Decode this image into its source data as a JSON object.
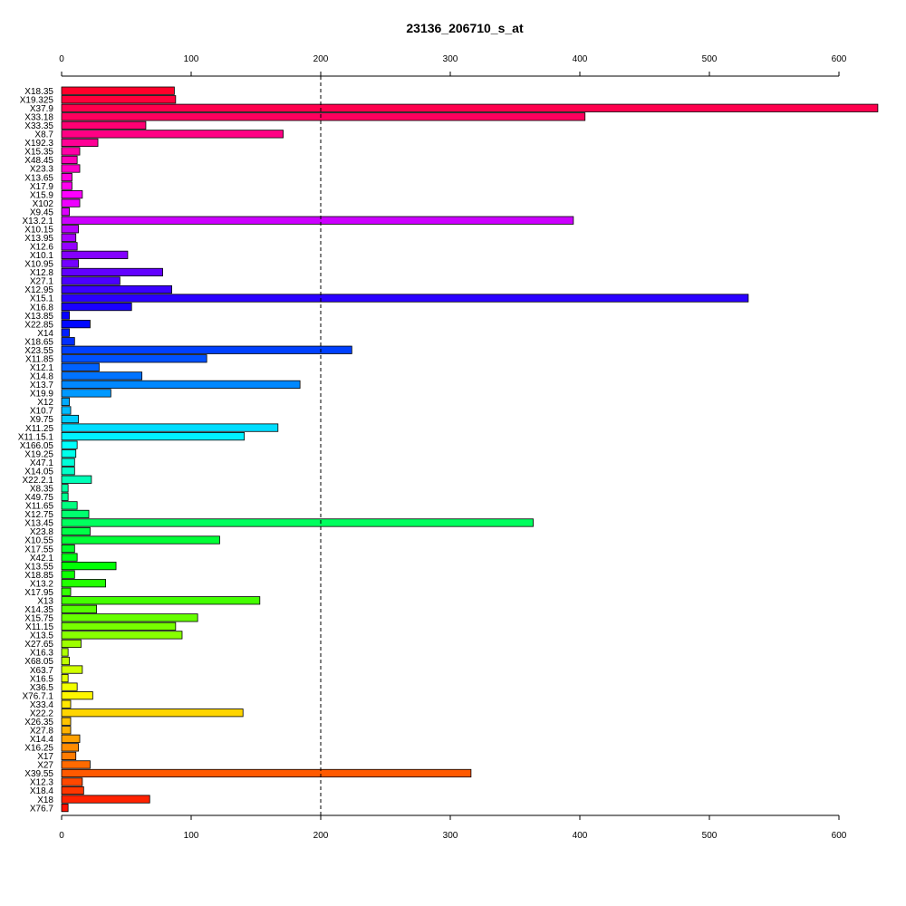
{
  "chart_data": {
    "type": "bar",
    "orientation": "horizontal",
    "title": "23136_206710_s_at",
    "xlabel": "",
    "ylabel": "",
    "xlim": [
      0,
      630
    ],
    "x_ticks": [
      0,
      100,
      200,
      300,
      400,
      500,
      600
    ],
    "x_tick_labels": [
      "0",
      "100",
      "200",
      "300",
      "400",
      "500",
      "600"
    ],
    "axis_top": true,
    "axis_bottom": true,
    "reference_line": {
      "value": 200,
      "style": "dashed"
    },
    "colors": "rainbow gradient (red → magenta → blue → cyan → green → yellow → orange → red)",
    "categories": [
      "X18.35",
      "X19.325",
      "X37.9",
      "X33.18",
      "X33.35",
      "X8.7",
      "X192.3",
      "X15.35",
      "X48.45",
      "X23.3",
      "X13.65",
      "X17.9",
      "X15.9",
      "X102",
      "X9.45",
      "X13.2.1",
      "X10.15",
      "X13.95",
      "X12.6",
      "X10.1",
      "X10.95",
      "X12.8",
      "X27.1",
      "X12.95",
      "X15.1",
      "X16.8",
      "X13.85",
      "X22.85",
      "X14",
      "X18.65",
      "X23.55",
      "X11.85",
      "X12.1",
      "X14.8",
      "X13.7",
      "X19.9",
      "X12",
      "X10.7",
      "X9.75",
      "X11.25",
      "X11.15.1",
      "X166.05",
      "X19.25",
      "X47.1",
      "X14.05",
      "X22.2.1",
      "X8.35",
      "X49.75",
      "X11.65",
      "X12.75",
      "X13.45",
      "X23.8",
      "X10.55",
      "X17.55",
      "X42.1",
      "X13.55",
      "X18.85",
      "X13.2",
      "X17.95",
      "X13",
      "X14.35",
      "X15.75",
      "X11.15",
      "X13.5",
      "X27.65",
      "X16.3",
      "X68.05",
      "X63.7",
      "X16.5",
      "X36.5",
      "X76.7.1",
      "X33.4",
      "X22.2",
      "X26.35",
      "X27.8",
      "X14.4",
      "X16.25",
      "X17",
      "X27",
      "X39.55",
      "X12.3",
      "X18.4",
      "X18",
      "X76.7"
    ],
    "values": [
      87,
      88,
      630,
      404,
      65,
      171,
      28,
      14,
      12,
      14,
      8,
      8,
      16,
      14,
      6,
      395,
      13,
      11,
      12,
      51,
      13,
      78,
      45,
      85,
      530,
      54,
      6,
      22,
      6,
      10,
      224,
      112,
      29,
      62,
      184,
      38,
      6,
      7,
      13,
      167,
      141,
      12,
      11,
      10,
      10,
      23,
      5,
      5,
      12,
      21,
      364,
      22,
      122,
      10,
      12,
      42,
      10,
      34,
      7,
      153,
      27,
      105,
      88,
      93,
      15,
      5,
      6,
      16,
      5,
      12,
      24,
      7,
      140,
      7,
      7,
      14,
      13,
      11,
      22,
      316,
      16,
      17,
      68,
      5
    ]
  }
}
